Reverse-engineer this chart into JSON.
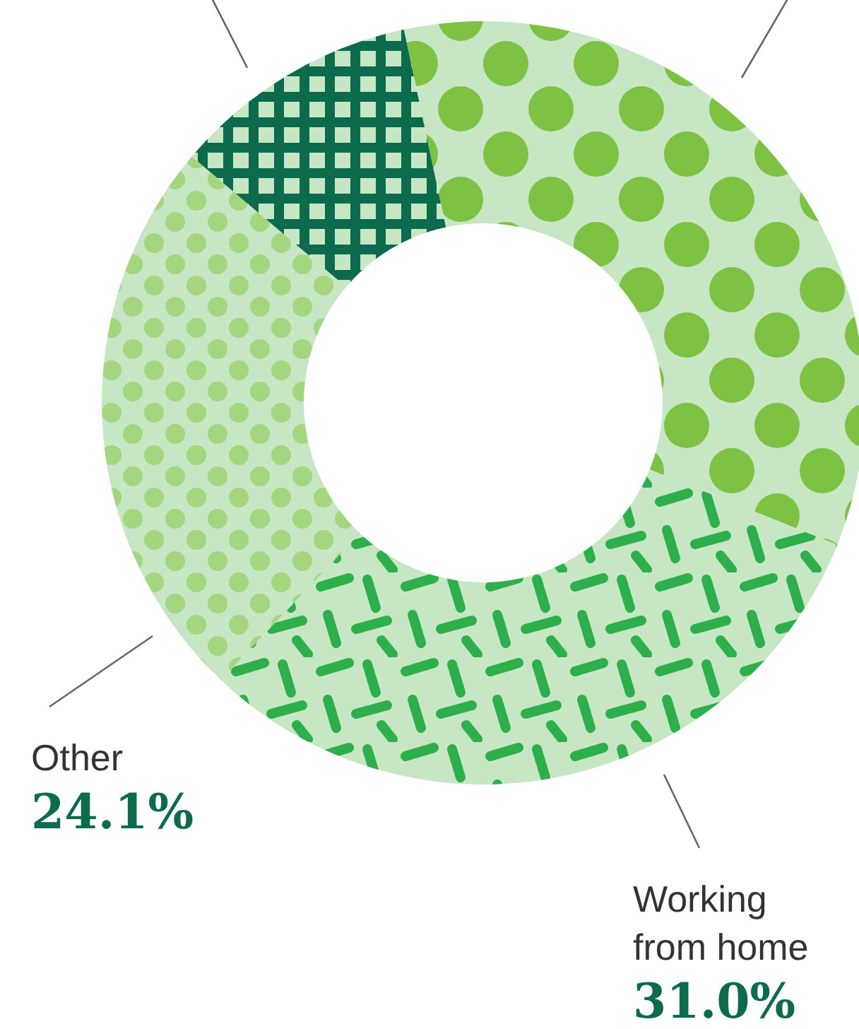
{
  "chart_data": {
    "type": "donut",
    "categories": [
      null,
      "Working from home",
      "Other",
      null
    ],
    "values": [
      34.4,
      31.0,
      24.1,
      10.5
    ],
    "colors": [
      "#7dc242",
      "#2db04b",
      "#a3d67e",
      "#0b6b4c"
    ],
    "value_labels": [
      null,
      "31.0%",
      "24.1%",
      null
    ]
  }
}
